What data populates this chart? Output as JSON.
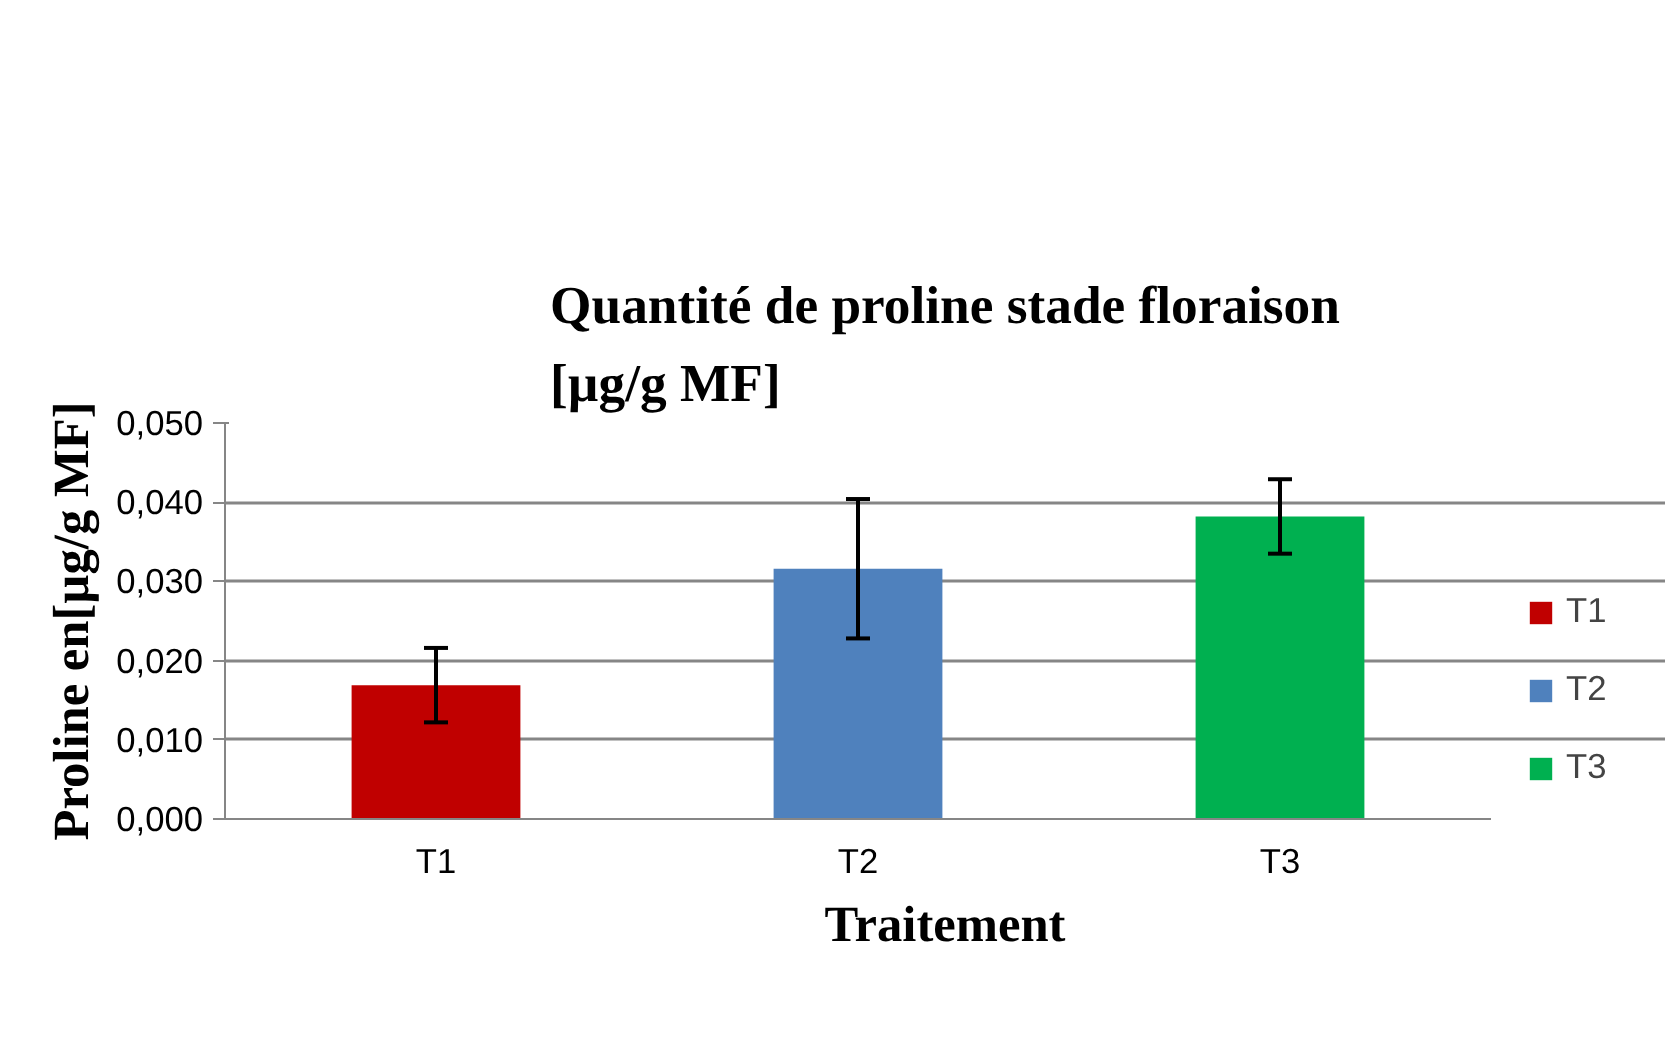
{
  "chart_data": {
    "type": "bar",
    "title": "Quantité de proline stade floraison\n[µg/g MF]",
    "xlabel": "Traitement",
    "ylabel": "Proline en[µg/g MF]",
    "categories": [
      "T1",
      "T2",
      "T3"
    ],
    "series": [
      {
        "name": "T1",
        "color": "#c00000",
        "values": [
          0.0169,
          null,
          null
        ],
        "errors": [
          0.0047,
          null,
          null
        ]
      },
      {
        "name": "T2",
        "color": "#4f81bd",
        "values": [
          null,
          0.0316,
          null
        ],
        "errors": [
          null,
          0.0088,
          null
        ]
      },
      {
        "name": "T3",
        "color": "#00b050",
        "values": [
          null,
          null,
          0.0382
        ],
        "errors": [
          null,
          null,
          0.0047
        ]
      }
    ],
    "ylim": [
      0,
      0.05
    ],
    "yticks": [
      {
        "value": 0,
        "label": "0,000"
      },
      {
        "value": 0.01,
        "label": "0,010"
      },
      {
        "value": 0.02,
        "label": "0,020"
      },
      {
        "value": 0.03,
        "label": "0,030"
      },
      {
        "value": 0.04,
        "label": "0,040"
      },
      {
        "value": 0.05,
        "label": "0,050"
      }
    ],
    "grid": "y",
    "legend": "right"
  }
}
